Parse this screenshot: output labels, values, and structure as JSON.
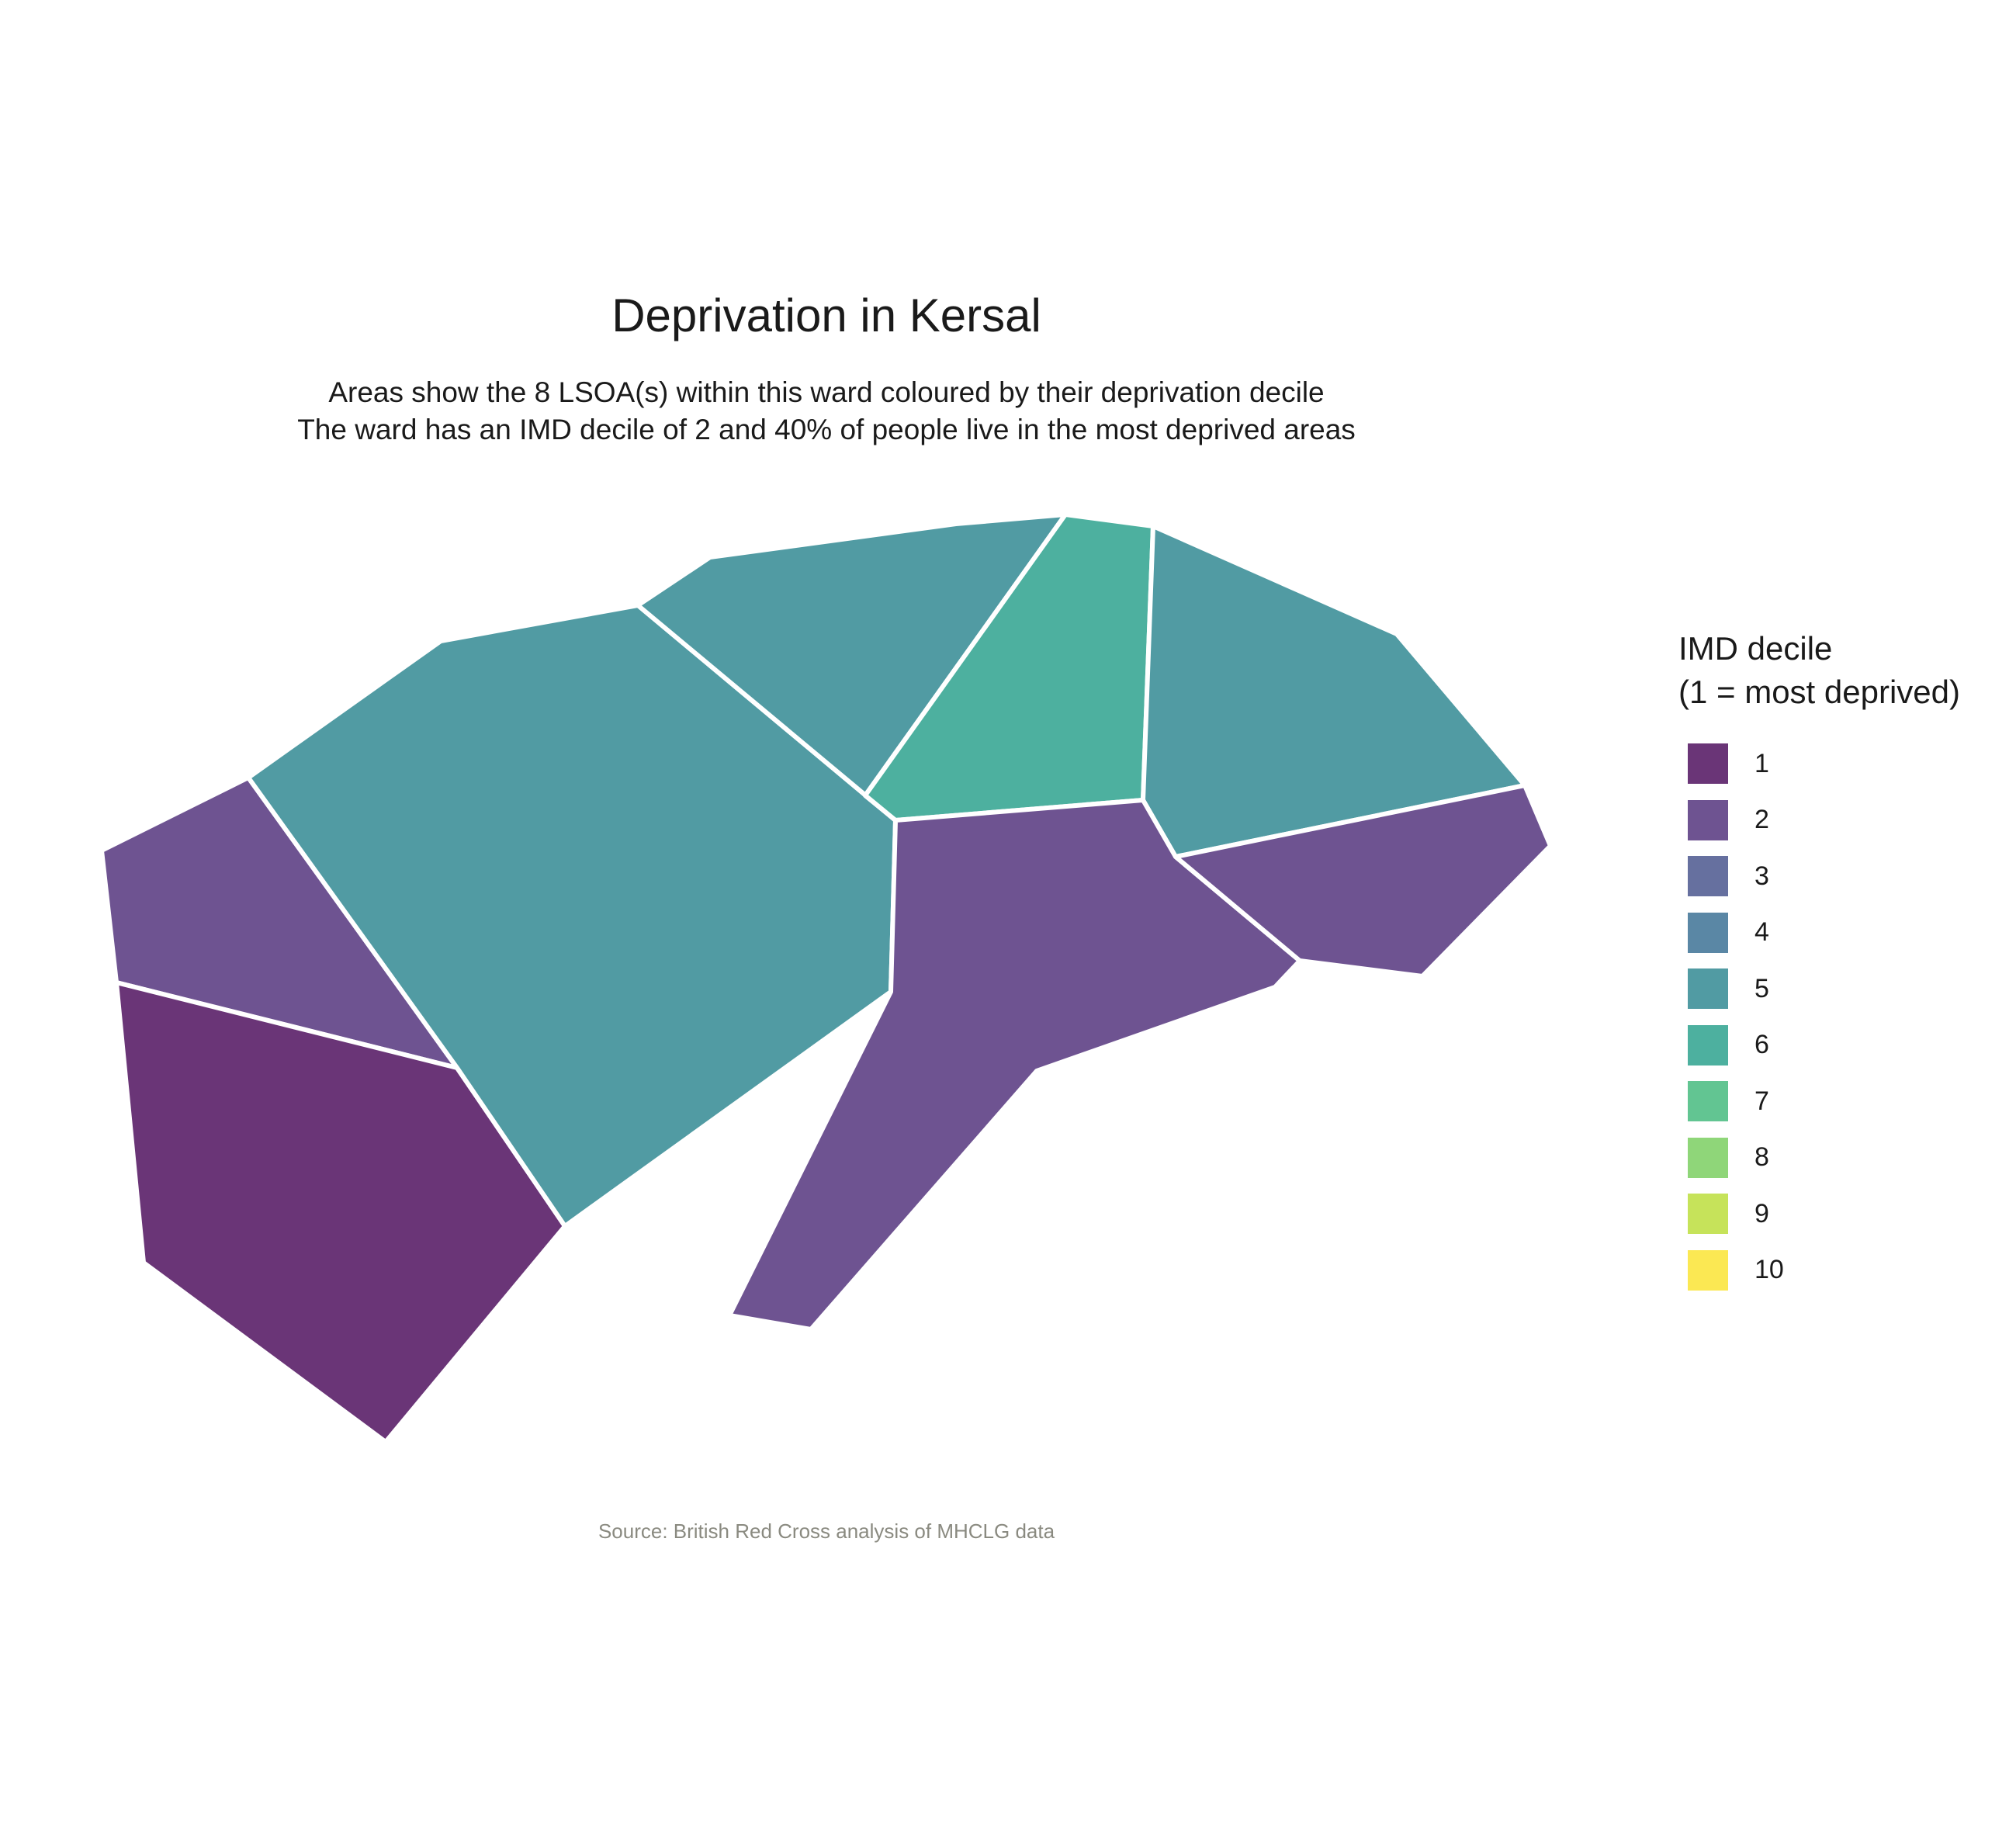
{
  "title": "Deprivation in Kersal",
  "subtitle_lines": [
    "Areas show the 8 LSOA(s) within this ward coloured by their deprivation decile",
    "The ward has an IMD decile of 2 and 40% of people live in the most deprived areas"
  ],
  "legend": {
    "title_lines": [
      "IMD decile",
      "(1 = most deprived)"
    ],
    "items": [
      {
        "label": "1",
        "color": "#6a3577"
      },
      {
        "label": "2",
        "color": "#6e5391"
      },
      {
        "label": "3",
        "color": "#66709f"
      },
      {
        "label": "4",
        "color": "#5a87a5"
      },
      {
        "label": "5",
        "color": "#519ba3"
      },
      {
        "label": "6",
        "color": "#4db09f"
      },
      {
        "label": "7",
        "color": "#62c592"
      },
      {
        "label": "8",
        "color": "#8fd679"
      },
      {
        "label": "9",
        "color": "#c6e35a"
      },
      {
        "label": "10",
        "color": "#fbe853"
      }
    ]
  },
  "chart_data": {
    "type": "choropleth",
    "areas": [
      {
        "decile": 2
      },
      {
        "decile": 1
      },
      {
        "decile": 5
      },
      {
        "decile": 5
      },
      {
        "decile": 6
      },
      {
        "decile": 5
      },
      {
        "decile": 2
      },
      {
        "decile": 2
      }
    ]
  },
  "source": "Source: British Red Cross analysis of MHCLG data"
}
